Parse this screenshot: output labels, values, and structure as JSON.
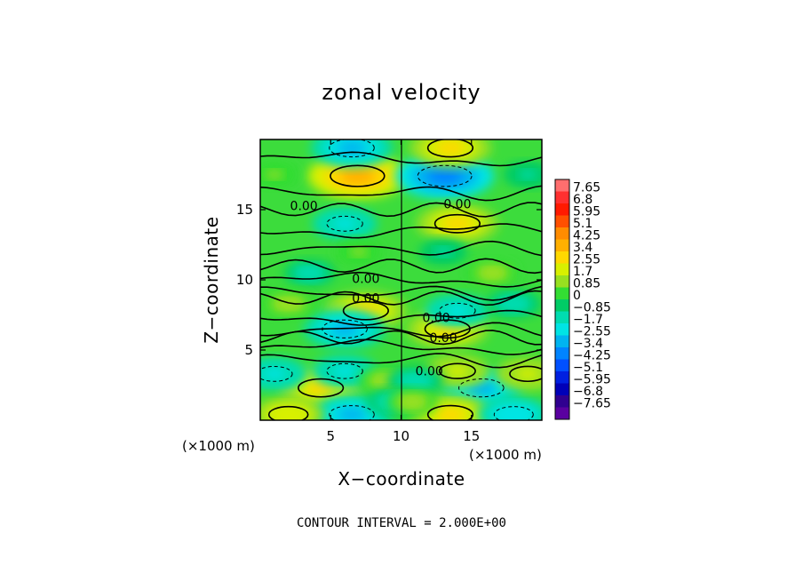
{
  "chart_data": {
    "type": "heatmap",
    "title": "zonal velocity",
    "xlabel": "X−coordinate",
    "ylabel": "Z−coordinate",
    "x_unit_left": "(×1000 m)",
    "x_unit_right": "(×1000 m)",
    "xlim": [
      0,
      20
    ],
    "ylim": [
      0,
      20
    ],
    "x_ticks": [
      5,
      10,
      15
    ],
    "x_tick_labels": [
      "5",
      "10",
      "15"
    ],
    "y_ticks": [
      5,
      10,
      15
    ],
    "y_tick_labels": [
      "5",
      "10",
      "15"
    ],
    "contour_interval_text": "CONTOUR INTERVAL = 2.000E+00",
    "contour_interval": 2.0,
    "colorbar": {
      "levels": [
        "7.65",
        "6.8",
        "5.95",
        "5.1",
        "4.25",
        "3.4",
        "2.55",
        "1.7",
        "0.85",
        "0",
        "−0.85",
        "−1.7",
        "−2.55",
        "−3.4",
        "−4.25",
        "−5.1",
        "−5.95",
        "−6.8",
        "−7.65"
      ],
      "colors": [
        "#ff6e6e",
        "#ff3030",
        "#ff1a00",
        "#ff5000",
        "#ff8c00",
        "#ffb000",
        "#ffd800",
        "#d8f000",
        "#98e020",
        "#33dd33",
        "#00cc66",
        "#00dcb0",
        "#00e4e4",
        "#00b4f0",
        "#0084ff",
        "#0050ff",
        "#0020e0",
        "#0000b8",
        "#300090",
        "#5a00a0"
      ]
    },
    "contour_labels": [
      {
        "x": 3.1,
        "z": 15.3,
        "text": "0.00"
      },
      {
        "x": 14.0,
        "z": 15.4,
        "text": "0.00"
      },
      {
        "x": 7.5,
        "z": 10.1,
        "text": "0.00"
      },
      {
        "x": 7.5,
        "z": 8.7,
        "text": "0.00"
      },
      {
        "x": 12.5,
        "z": 7.3,
        "text": "0.00"
      },
      {
        "x": 13.0,
        "z": 5.9,
        "text": "0.00"
      },
      {
        "x": 12.0,
        "z": 3.5,
        "text": "0.00"
      }
    ],
    "field_features": [
      {
        "x": 6.9,
        "z": 17.4,
        "value": 3.4
      },
      {
        "x": 13.1,
        "z": 17.4,
        "value": -3.4
      },
      {
        "x": 6.0,
        "z": 14.0,
        "value": -1.7
      },
      {
        "x": 14.0,
        "z": 14.0,
        "value": 2.55
      },
      {
        "x": 7.5,
        "z": 7.8,
        "value": 2.55
      },
      {
        "x": 13.3,
        "z": 6.5,
        "value": 2.55
      },
      {
        "x": 6.0,
        "z": 6.5,
        "value": -2.55
      },
      {
        "x": 14.0,
        "z": 7.8,
        "value": -1.7
      },
      {
        "x": 4.3,
        "z": 2.3,
        "value": 2.55
      },
      {
        "x": 15.7,
        "z": 2.3,
        "value": -2.55
      },
      {
        "x": 13.5,
        "z": 19.4,
        "value": 2.55
      },
      {
        "x": 6.5,
        "z": 19.4,
        "value": -2.55
      },
      {
        "x": 6.5,
        "z": 0.4,
        "value": -2.55
      },
      {
        "x": 13.5,
        "z": 0.4,
        "value": 2.55
      },
      {
        "x": 2.0,
        "z": 0.4,
        "value": 2.0
      },
      {
        "x": 18.0,
        "z": 0.4,
        "value": -2.0
      },
      {
        "x": 6.0,
        "z": 3.5,
        "value": -1.7
      },
      {
        "x": 14.0,
        "z": 3.5,
        "value": 1.7
      },
      {
        "x": 1.0,
        "z": 3.3,
        "value": -1.7
      },
      {
        "x": 19.0,
        "z": 3.3,
        "value": 1.7
      },
      {
        "x": 3.5,
        "z": 10.5,
        "value": -1.0
      },
      {
        "x": 16.5,
        "z": 10.5,
        "value": 1.0
      },
      {
        "x": 7.0,
        "z": 12.0,
        "value": 0.85
      },
      {
        "x": 13.0,
        "z": 12.0,
        "value": -0.85
      },
      {
        "x": 2.0,
        "z": 8.3,
        "value": 1.2
      },
      {
        "x": 18.0,
        "z": 8.3,
        "value": -1.2
      },
      {
        "x": 1.0,
        "z": 17.5,
        "value": 0.9
      },
      {
        "x": 19.0,
        "z": 17.5,
        "value": -0.9
      },
      {
        "x": 9.0,
        "z": 2.8,
        "value": 1.3
      },
      {
        "x": 11.0,
        "z": 2.8,
        "value": -1.3
      },
      {
        "x": 9.3,
        "z": 1.3,
        "value": -1.0
      },
      {
        "x": 10.8,
        "z": 1.3,
        "value": 1.0
      }
    ]
  }
}
